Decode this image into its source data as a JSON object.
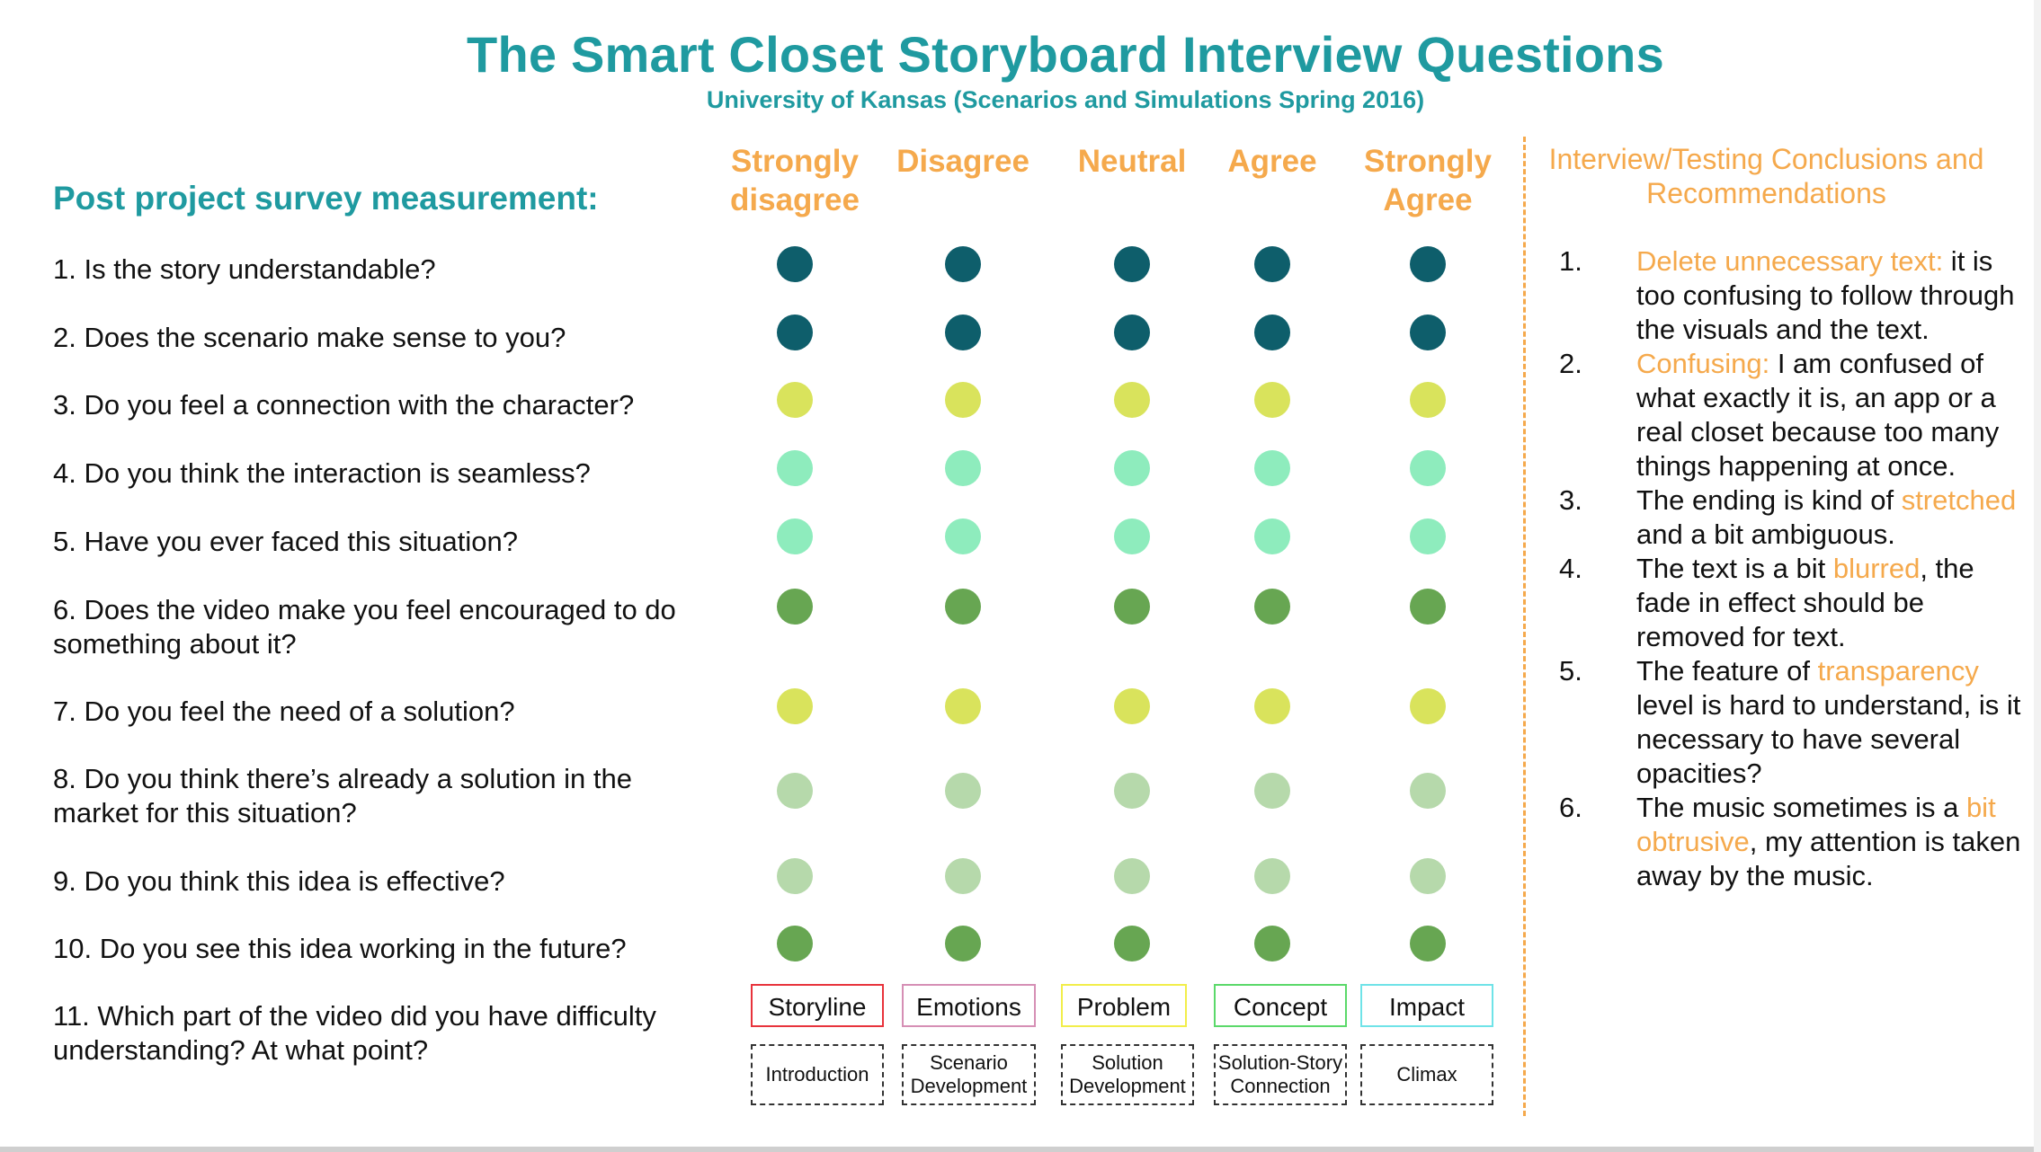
{
  "header": {
    "title": "The Smart Closet Storyboard Interview Questions",
    "subtitle": "University of Kansas (Scenarios and Simulations Spring 2016)"
  },
  "survey": {
    "heading": "Post project survey measurement:",
    "scale": [
      {
        "line1": "Strongly",
        "line2": "disagree"
      },
      {
        "line1": "Disagree",
        "line2": ""
      },
      {
        "line1": "Neutral",
        "line2": ""
      },
      {
        "line1": "Agree",
        "line2": ""
      },
      {
        "line1": "Strongly",
        "line2": "Agree"
      }
    ],
    "questions": [
      {
        "text": "1. Is the story understandable?",
        "dot_color": "#0e5e6b"
      },
      {
        "text": "2. Does the scenario make sense to you?",
        "dot_color": "#0e5e6b"
      },
      {
        "text": "3. Do you feel a connection with the character?",
        "dot_color": "#d9e35c"
      },
      {
        "text": "4. Do you think the interaction is seamless?",
        "dot_color": "#8eecbd"
      },
      {
        "text": "5. Have you ever faced this situation?",
        "dot_color": "#8eecbd"
      },
      {
        "text": "6. Does the video make you feel encouraged to do something about it?",
        "dot_color": "#67a652"
      },
      {
        "text": "7. Do you feel the need of a solution?",
        "dot_color": "#d9e35c"
      },
      {
        "text": "8. Do you think there’s already a solution in the market for this situation?",
        "dot_color": "#b6d9ab"
      },
      {
        "text": "9. Do you think this idea is effective?",
        "dot_color": "#b6d9ab"
      },
      {
        "text": "10. Do you see this idea working in the future?",
        "dot_color": "#67a652"
      },
      {
        "text": "11. Which part of the video did you have difficulty understanding? At what point?",
        "dot_color": ""
      }
    ],
    "parts": [
      {
        "label": "Storyline",
        "sub": "Introduction",
        "color": "#e8333c"
      },
      {
        "label": "Emotions",
        "sub": "Scenario Development",
        "color": "#d68fb5"
      },
      {
        "label": "Problem",
        "sub": "Solution Development",
        "color": "#f2ee4a"
      },
      {
        "label": "Concept",
        "sub": "Solution-Story Connection",
        "color": "#5bd96a"
      },
      {
        "label": "Impact",
        "sub": "Climax",
        "color": "#6fe3e8"
      }
    ]
  },
  "conclusions": {
    "heading": "Interview/Testing Conclusions and Recommendations",
    "items": [
      {
        "num": "1.",
        "parts": [
          {
            "t": "Delete unnecessary text:",
            "hl": true
          },
          {
            "t": " it is too confusing to follow through the visuals and the text.",
            "hl": false
          }
        ]
      },
      {
        "num": "2.",
        "parts": [
          {
            "t": "Confusing:",
            "hl": true
          },
          {
            "t": " I am confused of what exactly it is, an app or a real closet because too many things happening at once.",
            "hl": false
          }
        ]
      },
      {
        "num": "3.",
        "parts": [
          {
            "t": "The ending is kind of ",
            "hl": false
          },
          {
            "t": "stretched",
            "hl": true
          },
          {
            "t": " and a bit ambiguous.",
            "hl": false
          }
        ]
      },
      {
        "num": "4.",
        "parts": [
          {
            "t": "The text is a bit ",
            "hl": false
          },
          {
            "t": "blurred",
            "hl": true
          },
          {
            "t": ", the fade in effect should be removed for text.",
            "hl": false
          }
        ]
      },
      {
        "num": "5.",
        "parts": [
          {
            "t": "The feature of ",
            "hl": false
          },
          {
            "t": "transparency",
            "hl": true
          },
          {
            "t": " level is hard to understand, is it necessary to have several opacities?",
            "hl": false
          }
        ]
      },
      {
        "num": "6.",
        "parts": [
          {
            "t": "The music sometimes is a ",
            "hl": false
          },
          {
            "t": "bit obtrusive",
            "hl": true
          },
          {
            "t": ", my attention is taken away by the music.",
            "hl": false
          }
        ]
      }
    ]
  }
}
